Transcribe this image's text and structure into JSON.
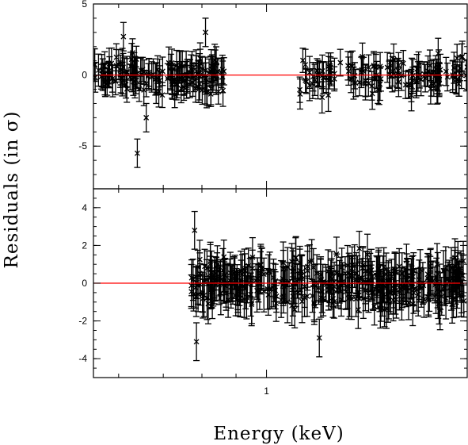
{
  "chart_data": {
    "type": "scatter",
    "xlabel": "Energy (keV)",
    "ylabel": "Residuals (in σ)",
    "x_scale": "log",
    "x_tick_labels": [
      "1"
    ],
    "panels": [
      {
        "name": "",
        "ylim": [
          -8,
          5
        ],
        "yticks": [
          5,
          0,
          -5
        ],
        "y_tick_labels": [
          "5",
          "0",
          "-5"
        ],
        "reference_line": 0,
        "segments": [
          {
            "x_range_keV": [
              0.55,
              0.87
            ],
            "n_points": 150
          },
          {
            "x_range_keV": [
              1.12,
              2.0
            ],
            "n_points": 130
          }
        ],
        "outliers": [
          {
            "x_keV": 0.64,
            "y": -5.5,
            "err": 1.0
          },
          {
            "x_keV": 0.66,
            "y": -3.0,
            "err": 1.0
          },
          {
            "x_keV": 0.81,
            "y": 3.0,
            "err": 1.0
          },
          {
            "x_keV": 0.61,
            "y": 2.7,
            "err": 1.0
          }
        ]
      },
      {
        "name": "",
        "ylim": [
          -5,
          5
        ],
        "yticks": [
          4,
          2,
          0,
          -2,
          -4
        ],
        "y_tick_labels": [
          "4",
          "2",
          "0",
          "-2",
          "-4"
        ],
        "reference_line": 0,
        "segments": [
          {
            "x_range_keV": [
              0.77,
              2.0
            ],
            "n_points": 380
          }
        ],
        "outliers": [
          {
            "x_keV": 0.785,
            "y": -3.1,
            "err": 1.0
          },
          {
            "x_keV": 0.78,
            "y": 2.8,
            "err": 1.0
          },
          {
            "x_keV": 1.2,
            "y": -2.9,
            "err": 1.0
          }
        ]
      }
    ],
    "colors": {
      "points": "#000000",
      "reference_line": "#ff0000",
      "frame": "#000000"
    }
  }
}
